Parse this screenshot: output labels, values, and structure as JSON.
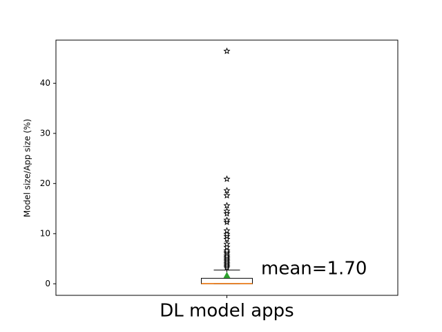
{
  "chart_data": {
    "type": "box",
    "y_label": "Model size/App size (%)",
    "categories": [
      "DL model apps"
    ],
    "boxes": [
      {
        "whislo": 0,
        "q1": 0,
        "med": 0.05,
        "q3": 1.1,
        "whishi": 2.76,
        "mean": 1.7,
        "fliers": [
          3.2,
          3.5,
          3.8,
          4.1,
          4.4,
          4.7,
          5.0,
          5.3,
          5.6,
          6.0,
          6.3,
          6.6,
          7.3,
          7.9,
          8.9,
          9.5,
          9.9,
          10.6,
          12.3,
          12.7,
          14.0,
          14.5,
          15.6,
          17.6,
          18.6,
          20.9,
          46.4
        ]
      }
    ],
    "annotation": "mean=1.70",
    "ylim": [
      -2.3,
      48.6
    ],
    "yticks": [
      0,
      10,
      20,
      30,
      40
    ],
    "median_color": "#ff7f0e",
    "mean_color": "#2ca02c",
    "flier_color": "#000000"
  }
}
